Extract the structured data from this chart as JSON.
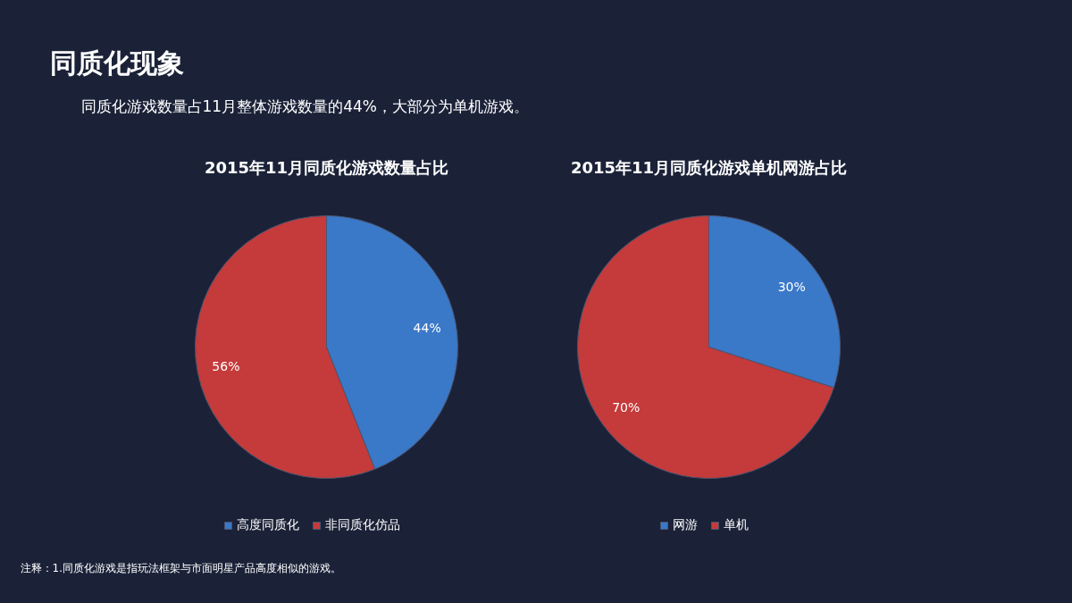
{
  "chart_data": [
    {
      "type": "other",
      "title": "同质化现象",
      "subtitle": "同质化游戏数量占11月整体游戏数量的44%，大部分为单机游戏。",
      "annotations": [
        "注释：1.同质化游戏是指玩法框架与市面明星产品高度相似的游戏。"
      ]
    },
    {
      "type": "pie",
      "title": "2015年11月同质化游戏数量占比",
      "categories": [
        "高度同质化",
        "非同质化仿品"
      ],
      "values": [
        44,
        56
      ],
      "colors": [
        "#3a78c8",
        "#c53a3a"
      ],
      "value_labels": [
        "44%",
        "56%"
      ],
      "legend": "bottom"
    },
    {
      "type": "pie",
      "title": "2015年11月同质化游戏单机网游占比",
      "categories": [
        "网游",
        "单机"
      ],
      "values": [
        30,
        70
      ],
      "colors": [
        "#3a78c8",
        "#c53a3a"
      ],
      "value_labels": [
        "30%",
        "70%"
      ],
      "legend": "bottom"
    }
  ]
}
